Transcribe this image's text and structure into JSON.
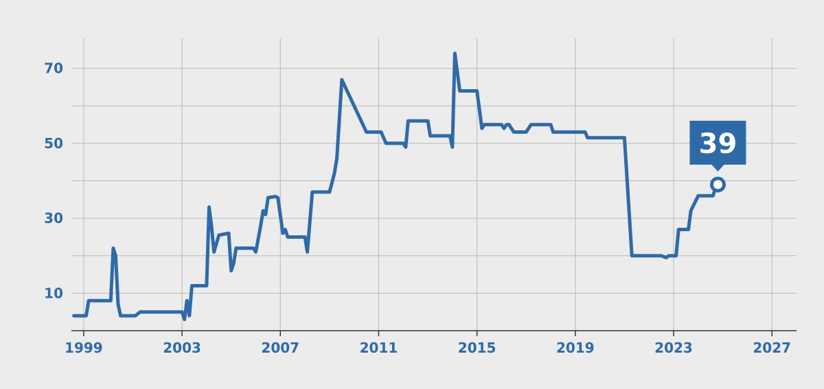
{
  "colors": {
    "background": "#ececec",
    "grid": "#b9b9b9",
    "axis": "#333333",
    "series": "#2f6aa8",
    "tick_text": "#2f6aa8",
    "callout_bg": "#2f6aa8",
    "callout_text": "#ffffff"
  },
  "chart_data": {
    "type": "line",
    "title": "",
    "xlabel": "",
    "ylabel": "",
    "xlim": [
      1998.5,
      2028
    ],
    "ylim": [
      0,
      78
    ],
    "x_ticks": [
      1999,
      2003,
      2007,
      2011,
      2015,
      2019,
      2023,
      2027
    ],
    "y_ticks": [
      10,
      30,
      50,
      70
    ],
    "grid": true,
    "legend": "none",
    "series": [
      {
        "values": [
          [
            1998.6,
            4
          ],
          [
            1999.1,
            4
          ],
          [
            1999.2,
            8
          ],
          [
            2000.1,
            8
          ],
          [
            2000.2,
            22
          ],
          [
            2000.3,
            20
          ],
          [
            2000.4,
            7
          ],
          [
            2000.5,
            4
          ],
          [
            2001.1,
            4
          ],
          [
            2001.3,
            5
          ],
          [
            2003.0,
            5
          ],
          [
            2003.1,
            3
          ],
          [
            2003.2,
            8
          ],
          [
            2003.3,
            4
          ],
          [
            2003.4,
            12
          ],
          [
            2004.0,
            12
          ],
          [
            2004.1,
            33
          ],
          [
            2004.2,
            28
          ],
          [
            2004.3,
            21
          ],
          [
            2004.5,
            25.5
          ],
          [
            2004.9,
            26
          ],
          [
            2005.0,
            16
          ],
          [
            2005.1,
            18
          ],
          [
            2005.2,
            22
          ],
          [
            2005.9,
            22
          ],
          [
            2006.0,
            21
          ],
          [
            2006.2,
            28
          ],
          [
            2006.3,
            32
          ],
          [
            2006.4,
            31
          ],
          [
            2006.5,
            35.5
          ],
          [
            2006.8,
            35.8
          ],
          [
            2006.9,
            35.5
          ],
          [
            2007.1,
            26
          ],
          [
            2007.2,
            27
          ],
          [
            2007.3,
            25
          ],
          [
            2008.0,
            25
          ],
          [
            2008.1,
            21
          ],
          [
            2008.3,
            37
          ],
          [
            2009.0,
            37
          ],
          [
            2009.2,
            42
          ],
          [
            2009.3,
            46
          ],
          [
            2009.5,
            67
          ],
          [
            2010.5,
            53
          ],
          [
            2011.1,
            53
          ],
          [
            2011.3,
            50
          ],
          [
            2012.0,
            50
          ],
          [
            2012.1,
            49
          ],
          [
            2012.2,
            56
          ],
          [
            2013.0,
            56
          ],
          [
            2013.1,
            52
          ],
          [
            2013.9,
            52
          ],
          [
            2014.0,
            49
          ],
          [
            2014.1,
            74
          ],
          [
            2014.3,
            64
          ],
          [
            2015.0,
            64
          ],
          [
            2015.2,
            54
          ],
          [
            2015.3,
            55
          ],
          [
            2016.0,
            55
          ],
          [
            2016.1,
            54
          ],
          [
            2016.2,
            55
          ],
          [
            2016.3,
            55
          ],
          [
            2016.5,
            53
          ],
          [
            2017.0,
            53
          ],
          [
            2017.2,
            55
          ],
          [
            2018.0,
            55
          ],
          [
            2018.1,
            53
          ],
          [
            2019.4,
            53
          ],
          [
            2019.5,
            51.5
          ],
          [
            2021.0,
            51.5
          ],
          [
            2021.3,
            20
          ],
          [
            2022.5,
            20
          ],
          [
            2022.7,
            19.5
          ],
          [
            2022.8,
            20
          ],
          [
            2023.1,
            20
          ],
          [
            2023.2,
            27
          ],
          [
            2023.6,
            27
          ],
          [
            2023.7,
            32
          ],
          [
            2024.0,
            36
          ],
          [
            2024.6,
            36
          ],
          [
            2024.7,
            38
          ],
          [
            2024.8,
            39
          ]
        ]
      }
    ],
    "annotations": [
      {
        "x": 2024.8,
        "y": 39,
        "label": "39"
      }
    ]
  }
}
